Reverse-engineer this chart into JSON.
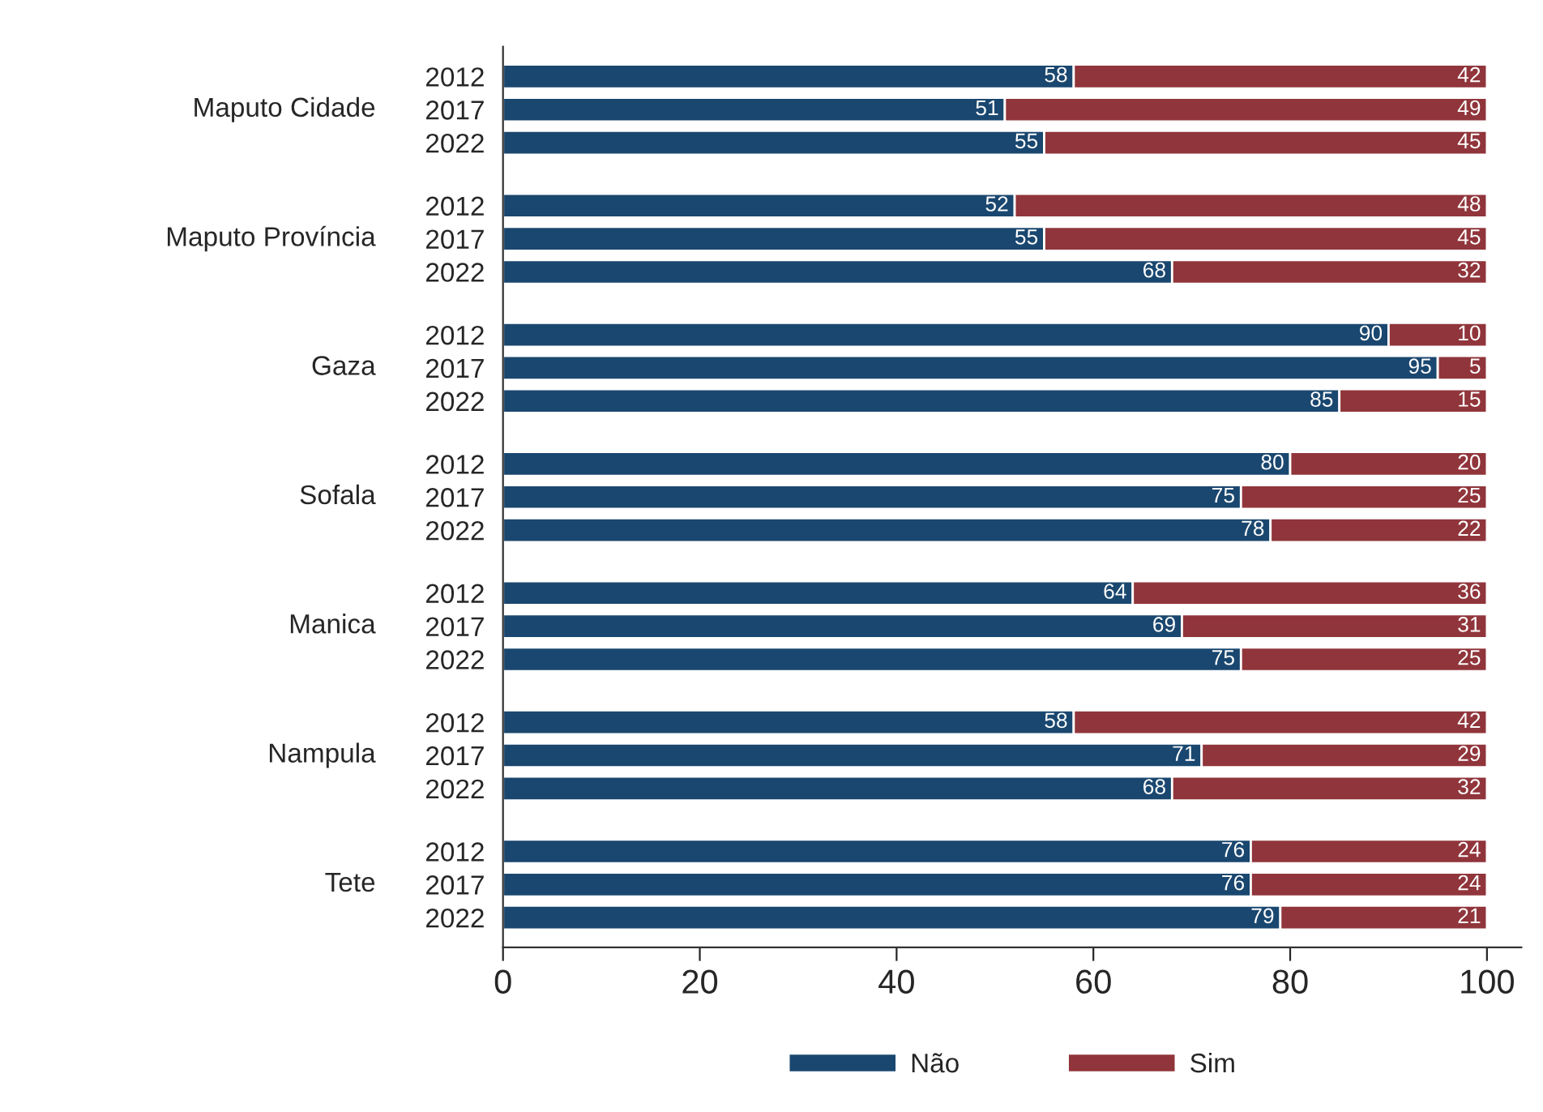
{
  "chart_data": {
    "type": "bar",
    "orientation": "horizontal",
    "stacked": true,
    "categories": [
      "2012",
      "2017",
      "2022",
      "2012",
      "2017",
      "2022",
      "2012",
      "2017",
      "2022",
      "2012",
      "2017",
      "2022",
      "2012",
      "2017",
      "2022",
      "2012",
      "2017",
      "2022",
      "2012",
      "2017",
      "2022"
    ],
    "annotations": [
      "Maputo Cidade",
      "Maputo Província",
      "Gaza",
      "Sofala",
      "Manica",
      "Nampula",
      "Tete"
    ],
    "series": [
      {
        "name": "Não",
        "color": "#1a476f",
        "values": [
          58,
          51,
          55,
          52,
          55,
          68,
          90,
          95,
          85,
          80,
          75,
          78,
          64,
          69,
          75,
          58,
          71,
          68,
          76,
          76,
          79
        ]
      },
      {
        "name": "Sim",
        "color": "#90353b",
        "values": [
          42,
          49,
          45,
          48,
          45,
          32,
          10,
          5,
          15,
          20,
          25,
          22,
          36,
          31,
          25,
          42,
          29,
          32,
          24,
          24,
          21
        ]
      }
    ],
    "xlim": [
      0,
      103.5
    ],
    "xticks": [
      0,
      20,
      40,
      60,
      80,
      100
    ],
    "data_labels": true,
    "legend": "bottom",
    "grid": false
  }
}
